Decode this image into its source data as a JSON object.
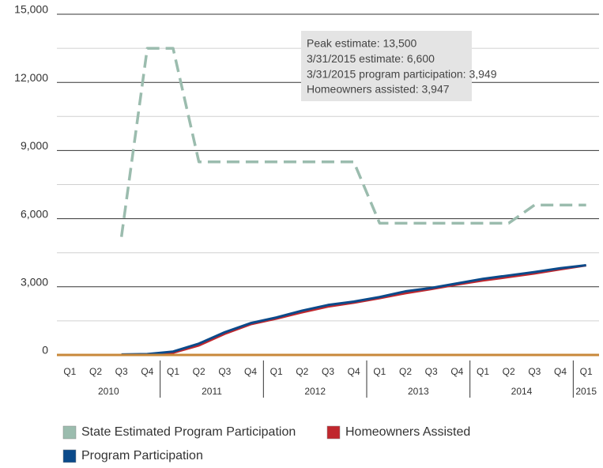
{
  "chart_data": {
    "type": "line",
    "categories": [
      "Q1",
      "Q2",
      "Q3",
      "Q4",
      "Q1",
      "Q2",
      "Q3",
      "Q4",
      "Q1",
      "Q2",
      "Q3",
      "Q4",
      "Q1",
      "Q2",
      "Q3",
      "Q4",
      "Q1",
      "Q2",
      "Q3",
      "Q4",
      "Q1"
    ],
    "years": [
      "2010",
      "2010",
      "2010",
      "2010",
      "2011",
      "2011",
      "2011",
      "2011",
      "2012",
      "2012",
      "2012",
      "2012",
      "2013",
      "2013",
      "2013",
      "2013",
      "2014",
      "2014",
      "2014",
      "2014",
      "2015"
    ],
    "series": [
      {
        "name": "State Estimated Program Participation",
        "color": "#9bbcae",
        "dashed": true,
        "values": [
          null,
          null,
          5200,
          13500,
          13500,
          8500,
          8500,
          8500,
          8500,
          8500,
          8500,
          8500,
          5800,
          5800,
          5800,
          5800,
          5800,
          5800,
          6600,
          6600,
          6600
        ]
      },
      {
        "name": "Homeowners Assisted",
        "color": "#c0272d",
        "values": [
          null,
          null,
          0,
          10,
          100,
          420,
          930,
          1350,
          1600,
          1880,
          2130,
          2300,
          2500,
          2720,
          2900,
          3100,
          3280,
          3430,
          3590,
          3770,
          3947
        ]
      },
      {
        "name": "Program Participation",
        "color": "#0b4a8a",
        "values": [
          null,
          null,
          20,
          40,
          150,
          500,
          1000,
          1400,
          1650,
          1950,
          2200,
          2350,
          2550,
          2800,
          2950,
          3150,
          3350,
          3500,
          3650,
          3820,
          3949
        ]
      }
    ],
    "ylim": [
      0,
      15000
    ],
    "yticks": [
      {
        "value": 0,
        "label": "0"
      },
      {
        "value": 3000,
        "label": "3,000"
      },
      {
        "value": 6000,
        "label": "6,000"
      },
      {
        "value": 9000,
        "label": "9,000"
      },
      {
        "value": 12000,
        "label": "12,000"
      },
      {
        "value": 15000,
        "label": "15,000"
      }
    ],
    "minor_yticks": [
      1500,
      4500,
      7500,
      10500,
      13500
    ],
    "grid": true,
    "baseline_color": "#c8883a",
    "annotation": [
      "Peak estimate: 13,500",
      "3/31/2015 estimate: 6,600",
      "3/31/2015 program participation: 3,949",
      "Homeowners assisted: 3,947"
    ]
  }
}
